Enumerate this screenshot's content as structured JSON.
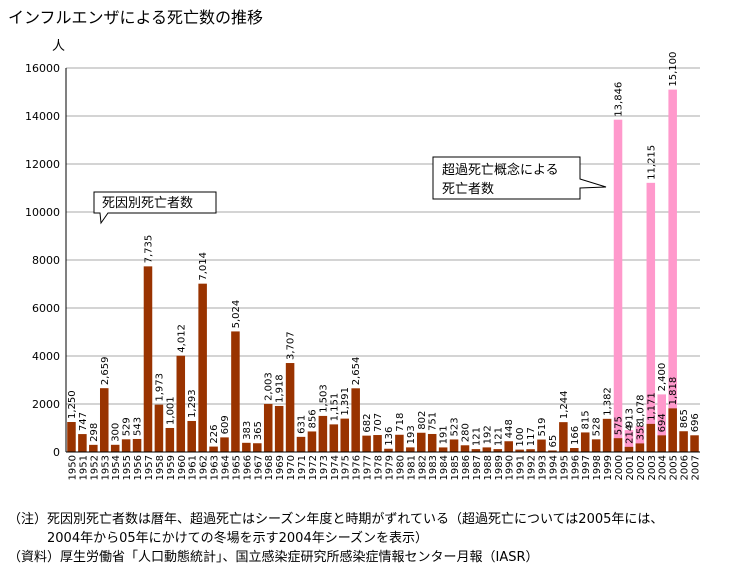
{
  "title": "インフルエンザによる死亡数の推移",
  "notes": {
    "note_line1": "（注）死因別死亡者数は暦年、超過死亡はシーズン年度と時期がずれている（超過死亡については2005年には、",
    "note_line2": "　　　2004年から05年にかけての冬場を示す2004年シーズンを表示）",
    "source": "（資料）厚生労働省「人口動態統計」、国立感染症研究所感染症情報センター月報（IASR）"
  },
  "colors": {
    "cause": "#993300",
    "excess": "#ff99cc",
    "grid": "#aaaaaa"
  },
  "chart_data": {
    "type": "bar",
    "ylabel": "人",
    "ylim": [
      0,
      16000
    ],
    "yticks": [
      0,
      2000,
      4000,
      6000,
      8000,
      10000,
      12000,
      14000,
      16000
    ],
    "yticklabels": [
      "0",
      "2000",
      "4000",
      "6000",
      "8000",
      "10000",
      "12000",
      "14000",
      "16000"
    ],
    "categories": [
      "1950",
      "1951",
      "1952",
      "1953",
      "1954",
      "1955",
      "1956",
      "1957",
      "1958",
      "1959",
      "1960",
      "1961",
      "1962",
      "1963",
      "1964",
      "1965",
      "1966",
      "1967",
      "1968",
      "1969",
      "1970",
      "1971",
      "1972",
      "1973",
      "1974",
      "1975",
      "1976",
      "1977",
      "1978",
      "1979",
      "1980",
      "1981",
      "1982",
      "1983",
      "1984",
      "1985",
      "1986",
      "1987",
      "1988",
      "1989",
      "1990",
      "1991",
      "1992",
      "1993",
      "1994",
      "1995",
      "1996",
      "1997",
      "1998",
      "1999",
      "2000",
      "2001",
      "2002",
      "2003",
      "2004",
      "2005",
      "2006",
      "2007"
    ],
    "series": [
      {
        "name": "死因別死亡者数",
        "values": [
          1250,
          747,
          298,
          2659,
          300,
          529,
          543,
          7735,
          1973,
          1001,
          4012,
          1293,
          7014,
          226,
          609,
          5024,
          383,
          365,
          2003,
          1918,
          3707,
          631,
          856,
          1503,
          1151,
          1391,
          2654,
          682,
          707,
          136,
          718,
          193,
          802,
          751,
          191,
          523,
          280,
          121,
          192,
          121,
          448,
          100,
          117,
          519,
          65,
          1244,
          166,
          815,
          528,
          1382,
          575,
          214,
          358,
          1171,
          694,
          1818,
          865,
          696
        ],
        "labels": [
          "1,250",
          "747",
          "298",
          "2,659",
          "300",
          "529",
          "543",
          "7,735",
          "1,973",
          "1,001",
          "4,012",
          "1,293",
          "7,014",
          "226",
          "609",
          "5,024",
          "383",
          "365",
          "2,003",
          "1,918",
          "3,707",
          "631",
          "856",
          "1,503",
          "1,151",
          "1,391",
          "2,654",
          "682",
          "707",
          "136",
          "718",
          "193",
          "802",
          "751",
          "191",
          "523",
          "280",
          "121",
          "192",
          "121",
          "448",
          "100",
          "117",
          "519",
          "65",
          "1,244",
          "166",
          "815",
          "528",
          "1,382",
          "575",
          "214",
          "358",
          "1,171",
          "694",
          "1,818",
          "865",
          "696"
        ]
      },
      {
        "name": "超過死亡概念による死亡者数",
        "values": [
          null,
          null,
          null,
          null,
          null,
          null,
          null,
          null,
          null,
          null,
          null,
          null,
          null,
          null,
          null,
          null,
          null,
          null,
          null,
          null,
          null,
          null,
          null,
          null,
          null,
          null,
          null,
          null,
          null,
          null,
          null,
          null,
          null,
          null,
          null,
          null,
          null,
          null,
          null,
          null,
          null,
          null,
          null,
          null,
          null,
          null,
          null,
          null,
          null,
          null,
          13846,
          913,
          1078,
          11215,
          2400,
          15100,
          null,
          null
        ],
        "labels": [
          null,
          null,
          null,
          null,
          null,
          null,
          null,
          null,
          null,
          null,
          null,
          null,
          null,
          null,
          null,
          null,
          null,
          null,
          null,
          null,
          null,
          null,
          null,
          null,
          null,
          null,
          null,
          null,
          null,
          null,
          null,
          null,
          null,
          null,
          null,
          null,
          null,
          null,
          null,
          null,
          null,
          null,
          null,
          null,
          null,
          null,
          null,
          null,
          null,
          null,
          "13,846",
          "913",
          "1,078",
          "11,215",
          "2,400",
          "15,100",
          null,
          null
        ]
      }
    ],
    "callouts": {
      "cause": "死因別死亡者数",
      "excess_line1": "超過死亡概念による",
      "excess_line2": "死亡者数"
    }
  }
}
